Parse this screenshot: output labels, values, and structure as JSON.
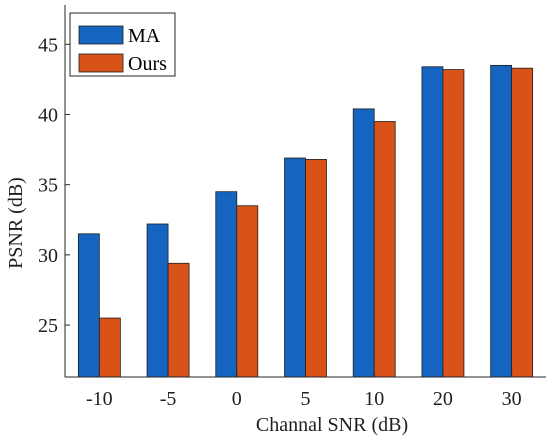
{
  "chart_data": {
    "type": "bar",
    "xlabel": "Channal SNR (dB)",
    "ylabel": "PSNR (dB)",
    "ylim": [
      21.3,
      47.8
    ],
    "yticks": [
      25,
      30,
      35,
      40,
      45
    ],
    "categories": [
      "-10",
      "-5",
      "0",
      "5",
      "10",
      "20",
      "30"
    ],
    "series": [
      {
        "name": "MA",
        "color": "#1565C0",
        "values": [
          31.5,
          32.2,
          34.5,
          36.9,
          40.4,
          43.4,
          43.5
        ]
      },
      {
        "name": "Ours",
        "color": "#D95319",
        "values": [
          25.5,
          29.4,
          33.5,
          36.8,
          39.5,
          43.2,
          43.3
        ]
      }
    ],
    "legend": {
      "placement": "top-left"
    },
    "grid": false
  }
}
